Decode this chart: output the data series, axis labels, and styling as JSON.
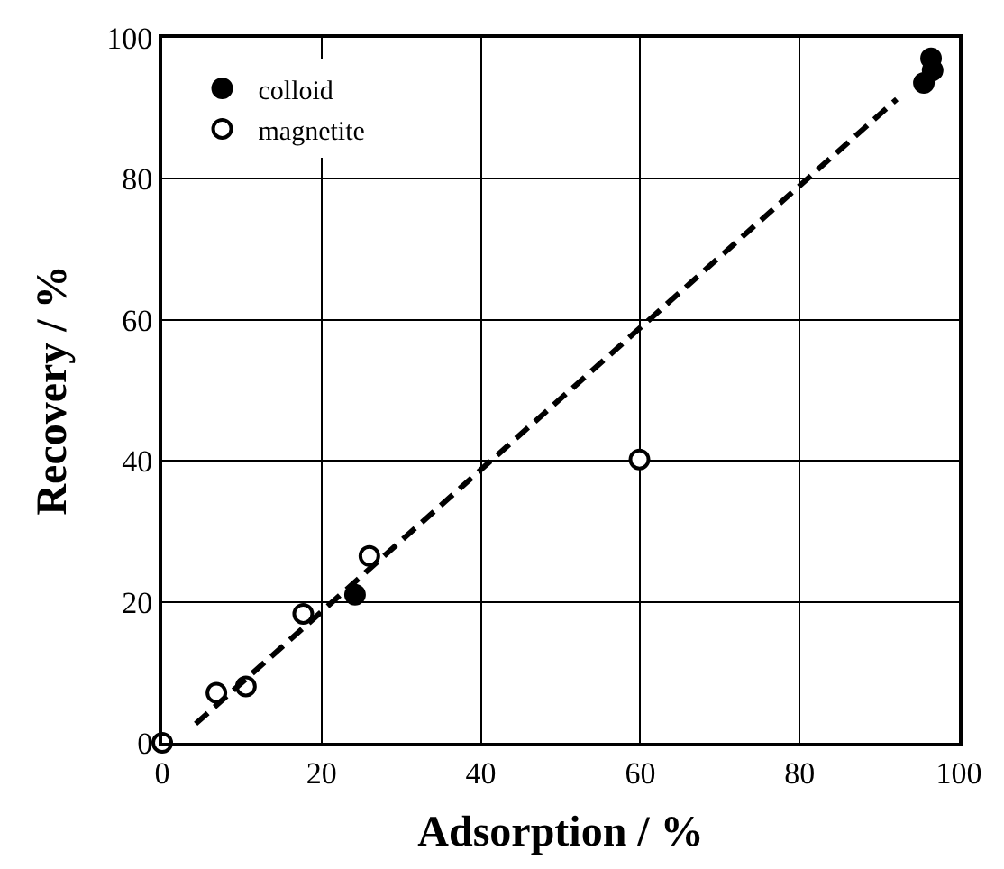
{
  "chart_data": {
    "type": "scatter",
    "xlabel": "Adsorption / %",
    "ylabel": "Recovery / %",
    "xlim": [
      0,
      100
    ],
    "ylim": [
      0,
      100
    ],
    "xticks": [
      0,
      20,
      40,
      60,
      80,
      100
    ],
    "yticks": [
      0,
      20,
      40,
      60,
      80,
      100
    ],
    "grid": true,
    "legend": "top left",
    "marker": "circle",
    "series": [
      {
        "name": "colloid",
        "color": "#000000",
        "x": [
          24.2,
          96.5,
          96.7,
          95.6
        ],
        "values": [
          21.0,
          97.1,
          95.4,
          93.6
        ]
      },
      {
        "name": "magnetite",
        "color": "#ffffff",
        "x": [
          0,
          6.8,
          10.5,
          17.7,
          26.0,
          59.9
        ],
        "values": [
          0,
          7.1,
          8.0,
          18.3,
          26.5,
          40.2
        ]
      },
      {
        "type": "line",
        "color": "#000000",
        "line_style": "dashed",
        "marker": "none",
        "x": [
          4.2,
          92.2
        ],
        "values": [
          2.7,
          91.3
        ]
      }
    ]
  }
}
